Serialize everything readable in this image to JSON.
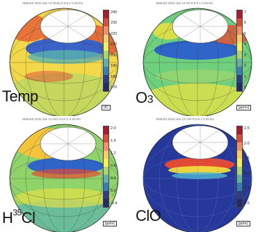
{
  "panels": [
    {
      "name": "Temp",
      "header": "SMILES 2010 Jan 13  Temp  0.5-0.1 0.25 km",
      "unit": "(K)",
      "ticks": [
        "240",
        "230",
        "220",
        "210",
        "200",
        "190",
        "180",
        "170"
      ],
      "cbar_colors": [
        "#b2182b",
        "#e34a33",
        "#fc8d59",
        "#fdcc5c",
        "#f7f14b",
        "#a6d96a",
        "#5ab4ac",
        "#2b83ba",
        "#2c3d8f",
        "#232a6e"
      ],
      "globe": {
        "base": "#f3d84a",
        "accent1": "#e34a33",
        "accent2": "#3a62c7",
        "accent3": "#5ab4ac"
      }
    },
    {
      "name": "O3",
      "header": "SMILES 2010 Jan 13  O3  0.5-0.1 0.25 km",
      "unit": "[ppmv]",
      "ticks": [
        "7",
        "6",
        "5",
        "4",
        "3",
        "2",
        "1",
        "0"
      ],
      "cbar_colors": [
        "#b2182b",
        "#e34a33",
        "#fc8d59",
        "#fdcc5c",
        "#f7f14b",
        "#a6d96a",
        "#5ab4ac",
        "#2b83ba",
        "#2c3d8f",
        "#232a6e"
      ],
      "globe": {
        "base": "#6ecf7c",
        "accent1": "#f2e23d",
        "accent2": "#2f65c9",
        "accent3": "#e34a33"
      }
    },
    {
      "name_main": "H",
      "name_sup": "35",
      "name_rest": "Cl",
      "header": "SMILES 2010 Jan 13  HCl  0.5-0.1 0.25 km",
      "unit": "[ppbv]",
      "ticks": [
        "2.0",
        "1.6",
        "1.2",
        "0.8",
        "0.4",
        "0.0",
        "-0.4"
      ],
      "cbar_colors": [
        "#b2182b",
        "#e34a33",
        "#fc8d59",
        "#fdcc5c",
        "#f7f14b",
        "#a6d96a",
        "#5ab4ac",
        "#2b83ba",
        "#2c3d8f",
        "#232a6e"
      ],
      "globe": {
        "base": "#8fd36a",
        "accent1": "#f4c43c",
        "accent2": "#2f65c9",
        "accent3": "#e34a33"
      }
    },
    {
      "name": "ClO",
      "header": "SMILES 2010 Jan 13  ClO  0.5-0.1 0.25 km",
      "unit": "[ppbv]",
      "ticks": [
        "2.5",
        "2.0",
        "1.5",
        "1.0",
        "0.5",
        "0.0"
      ],
      "cbar_colors": [
        "#b2182b",
        "#e34a33",
        "#fc8d59",
        "#fdcc5c",
        "#f7f14b",
        "#a6d96a",
        "#5ab4ac",
        "#2b83ba",
        "#2c3d8f",
        "#232a6e"
      ],
      "globe": {
        "base": "#26399a",
        "accent1": "#e34a33",
        "accent2": "#f2e23d",
        "accent3": "#4fb9d1"
      }
    }
  ]
}
